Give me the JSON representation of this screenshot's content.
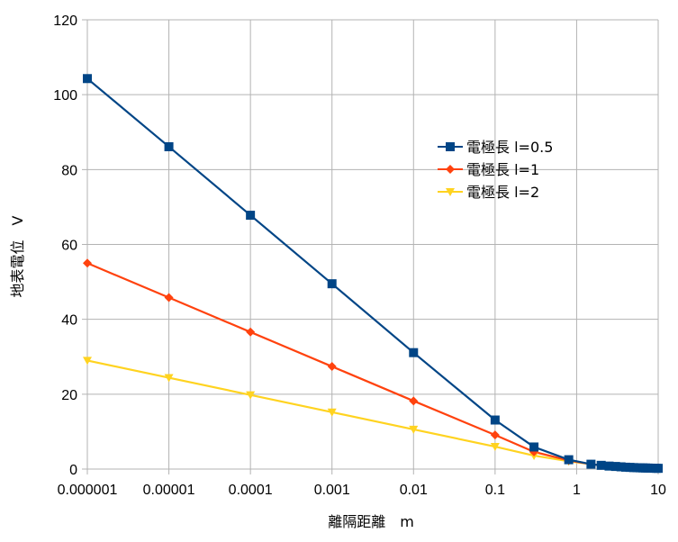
{
  "chart_data": {
    "type": "line",
    "xscale": "log",
    "xlabel": "離隔距離　m",
    "ylabel": "地表電位　V",
    "xlim": [
      1e-06,
      10
    ],
    "ylim": [
      0,
      120
    ],
    "x_tick_values": [
      1e-06,
      1e-05,
      0.0001,
      0.001,
      0.01,
      0.1,
      1,
      10
    ],
    "x_tick_labels": [
      "0.000001",
      "0.00001",
      "0.0001",
      "0.001",
      "0.01",
      "0.1",
      "1",
      "10"
    ],
    "y_ticks": [
      0,
      20,
      40,
      60,
      80,
      100,
      120
    ],
    "grid": true,
    "legend_position": "right",
    "series": [
      {
        "name": "電極長 l=0.5",
        "color": "#004586",
        "marker": "square",
        "x": [
          1e-06,
          1e-05,
          0.0001,
          0.001,
          0.01,
          0.1,
          0.3,
          0.8,
          1.5,
          2,
          2.5,
          3,
          3.5,
          4,
          4.5,
          5,
          5.5,
          6,
          6.5,
          7,
          7.5,
          8,
          8.5,
          9,
          9.5,
          10
        ],
        "y": [
          104.3,
          86.1,
          67.8,
          49.5,
          31.1,
          13.1,
          5.9,
          2.5,
          1.3,
          1.0,
          0.8,
          0.7,
          0.6,
          0.5,
          0.45,
          0.4,
          0.36,
          0.33,
          0.31,
          0.29,
          0.27,
          0.25,
          0.24,
          0.22,
          0.21,
          0.2
        ]
      },
      {
        "name": "電極長 l=1",
        "color": "#ff420e",
        "marker": "diamond",
        "x": [
          1e-06,
          1e-05,
          0.0001,
          0.001,
          0.01,
          0.1,
          0.3,
          0.8,
          1.5,
          2,
          2.5,
          3,
          3.5,
          4,
          4.5,
          5,
          5.5,
          6,
          6.5,
          7,
          7.5,
          8,
          8.5,
          9,
          9.5,
          10
        ],
        "y": [
          55.0,
          45.8,
          36.6,
          27.4,
          18.2,
          9.1,
          4.6,
          2.3,
          1.3,
          1.0,
          0.8,
          0.7,
          0.6,
          0.5,
          0.45,
          0.4,
          0.36,
          0.33,
          0.31,
          0.29,
          0.27,
          0.25,
          0.24,
          0.22,
          0.21,
          0.2
        ]
      },
      {
        "name": "電極長 l=2",
        "color": "#ffd320",
        "marker": "triangle-down",
        "x": [
          1e-06,
          1e-05,
          0.0001,
          0.001,
          0.01,
          0.1,
          0.3,
          0.8,
          1.5,
          2,
          2.5,
          3,
          3.5,
          4,
          4.5,
          5,
          5.5,
          6,
          6.5,
          7,
          7.5,
          8,
          8.5,
          9,
          9.5,
          10
        ],
        "y": [
          29.0,
          24.4,
          19.8,
          15.2,
          10.6,
          6.0,
          3.6,
          2.1,
          1.3,
          1.0,
          0.8,
          0.7,
          0.6,
          0.5,
          0.45,
          0.4,
          0.36,
          0.33,
          0.31,
          0.29,
          0.27,
          0.25,
          0.24,
          0.22,
          0.21,
          0.2
        ]
      }
    ]
  }
}
